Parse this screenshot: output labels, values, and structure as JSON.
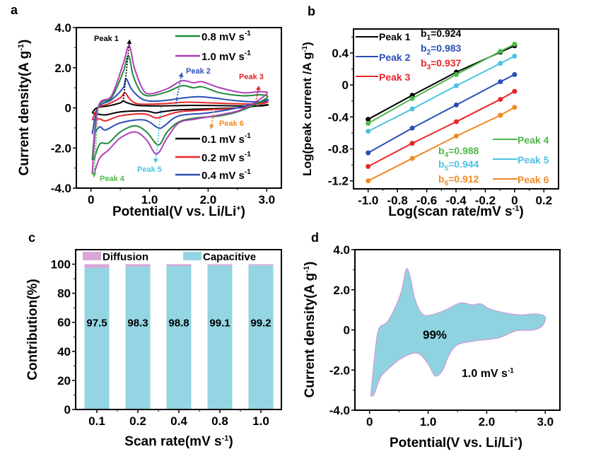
{
  "figure": {
    "panels": [
      "a",
      "b",
      "c",
      "d"
    ]
  },
  "chart_data": [
    {
      "panel": "a",
      "type": "line",
      "title": "",
      "xlabel": "Potential(V vs. Li/Li+)",
      "ylabel": "Current density(A g-1)",
      "xlim": [
        -0.25,
        3.25
      ],
      "ylim": [
        -4.0,
        4.0
      ],
      "xticks": [
        0,
        1.0,
        2.0,
        3.0
      ],
      "xtick_labels": [
        "0",
        "1.0",
        "2.0",
        "3.0"
      ],
      "yticks": [
        -4.0,
        -2.0,
        0,
        2.0,
        4.0
      ],
      "ytick_labels": [
        "-4.0",
        "-2.0",
        "0",
        "2.0",
        "4.0"
      ],
      "legend_top": [
        {
          "label": "0.8 mV s-1",
          "color": "#1e8a3c"
        },
        {
          "label": "1.0 mV s-1",
          "color": "#b13fb8"
        }
      ],
      "legend_bottom": [
        {
          "label": "0.1 mV s-1",
          "color": "#000000"
        },
        {
          "label": "0.2 mV s-1",
          "color": "#e8262a"
        },
        {
          "label": "0.4 mV s-1",
          "color": "#2b4fb5"
        }
      ],
      "series": [
        {
          "name": "0.1 mV s-1",
          "color": "#000000",
          "anodic": [
            [
              0.02,
              -0.25
            ],
            [
              0.1,
              0.0
            ],
            [
              0.3,
              0.1
            ],
            [
              0.5,
              0.25
            ],
            [
              0.55,
              0.35
            ],
            [
              0.62,
              0.25
            ],
            [
              0.8,
              0.12
            ],
            [
              1.2,
              0.1
            ],
            [
              1.6,
              0.12
            ],
            [
              2.0,
              0.12
            ],
            [
              2.5,
              0.1
            ],
            [
              2.9,
              0.1
            ],
            [
              3.0,
              0.15
            ]
          ],
          "cathodic": [
            [
              3.0,
              0.05
            ],
            [
              2.5,
              0.0
            ],
            [
              2.0,
              -0.05
            ],
            [
              1.5,
              -0.1
            ],
            [
              1.2,
              -0.2
            ],
            [
              1.1,
              -0.25
            ],
            [
              0.9,
              -0.15
            ],
            [
              0.5,
              -0.2
            ],
            [
              0.25,
              -0.35
            ],
            [
              0.1,
              -0.3
            ],
            [
              0.02,
              -0.25
            ]
          ]
        },
        {
          "name": "0.2 mV s-1",
          "color": "#e8262a",
          "anodic": [
            [
              0.02,
              -0.6
            ],
            [
              0.12,
              0.0
            ],
            [
              0.3,
              0.2
            ],
            [
              0.5,
              0.5
            ],
            [
              0.58,
              0.75
            ],
            [
              0.66,
              0.45
            ],
            [
              0.8,
              0.2
            ],
            [
              1.2,
              0.2
            ],
            [
              1.6,
              0.28
            ],
            [
              2.0,
              0.25
            ],
            [
              2.5,
              0.2
            ],
            [
              2.9,
              0.2
            ],
            [
              3.0,
              0.3
            ]
          ],
          "cathodic": [
            [
              3.0,
              0.1
            ],
            [
              2.5,
              0.0
            ],
            [
              2.0,
              -0.1
            ],
            [
              1.5,
              -0.2
            ],
            [
              1.2,
              -0.45
            ],
            [
              1.1,
              -0.5
            ],
            [
              0.9,
              -0.3
            ],
            [
              0.5,
              -0.4
            ],
            [
              0.25,
              -0.65
            ],
            [
              0.15,
              -0.55
            ],
            [
              0.02,
              -0.6
            ]
          ]
        },
        {
          "name": "0.4 mV s-1",
          "color": "#2b4fb5",
          "anodic": [
            [
              0.02,
              -1.3
            ],
            [
              0.12,
              0.0
            ],
            [
              0.35,
              0.4
            ],
            [
              0.55,
              1.0
            ],
            [
              0.6,
              1.45
            ],
            [
              0.7,
              0.9
            ],
            [
              0.9,
              0.4
            ],
            [
              1.2,
              0.35
            ],
            [
              1.6,
              0.5
            ],
            [
              1.9,
              0.55
            ],
            [
              2.5,
              0.35
            ],
            [
              2.9,
              0.3
            ],
            [
              3.0,
              0.4
            ]
          ],
          "cathodic": [
            [
              3.0,
              0.15
            ],
            [
              2.5,
              0.0
            ],
            [
              2.0,
              -0.25
            ],
            [
              1.5,
              -0.4
            ],
            [
              1.25,
              -0.9
            ],
            [
              1.15,
              -1.0
            ],
            [
              0.9,
              -0.6
            ],
            [
              0.5,
              -0.75
            ],
            [
              0.25,
              -1.1
            ],
            [
              0.15,
              -0.95
            ],
            [
              0.05,
              -1.3
            ]
          ]
        },
        {
          "name": "0.8 mV s-1",
          "color": "#1e8a3c",
          "anodic": [
            [
              0.02,
              -2.6
            ],
            [
              0.12,
              0.0
            ],
            [
              0.35,
              0.5
            ],
            [
              0.55,
              1.8
            ],
            [
              0.64,
              2.6
            ],
            [
              0.72,
              1.6
            ],
            [
              0.85,
              0.8
            ],
            [
              1.0,
              0.6
            ],
            [
              1.3,
              0.8
            ],
            [
              1.55,
              1.1
            ],
            [
              1.75,
              1.0
            ],
            [
              1.9,
              1.05
            ],
            [
              2.2,
              0.75
            ],
            [
              2.6,
              0.6
            ],
            [
              2.9,
              0.65
            ],
            [
              3.0,
              0.5
            ]
          ],
          "cathodic": [
            [
              3.0,
              0.1
            ],
            [
              2.6,
              -0.1
            ],
            [
              2.2,
              -0.4
            ],
            [
              1.8,
              -0.5
            ],
            [
              1.5,
              -0.7
            ],
            [
              1.3,
              -1.2
            ],
            [
              1.15,
              -1.85
            ],
            [
              0.95,
              -1.2
            ],
            [
              0.75,
              -0.9
            ],
            [
              0.5,
              -1.2
            ],
            [
              0.3,
              -1.75
            ],
            [
              0.15,
              -1.8
            ],
            [
              0.05,
              -2.6
            ]
          ]
        },
        {
          "name": "1.0 mV s-1",
          "color": "#b13fb8",
          "anodic": [
            [
              0.02,
              -3.3
            ],
            [
              0.12,
              0.0
            ],
            [
              0.35,
              0.6
            ],
            [
              0.55,
              2.2
            ],
            [
              0.65,
              3.1
            ],
            [
              0.74,
              2.0
            ],
            [
              0.88,
              0.95
            ],
            [
              1.0,
              0.7
            ],
            [
              1.3,
              0.95
            ],
            [
              1.55,
              1.35
            ],
            [
              1.75,
              1.25
            ],
            [
              1.9,
              1.3
            ],
            [
              2.2,
              1.0
            ],
            [
              2.6,
              0.75
            ],
            [
              2.85,
              0.8
            ],
            [
              3.0,
              0.7
            ]
          ],
          "cathodic": [
            [
              3.0,
              0.2
            ],
            [
              2.6,
              -0.05
            ],
            [
              2.2,
              -0.35
            ],
            [
              1.8,
              -0.55
            ],
            [
              1.5,
              -0.75
            ],
            [
              1.3,
              -1.5
            ],
            [
              1.12,
              -2.3
            ],
            [
              0.95,
              -1.6
            ],
            [
              0.75,
              -1.2
            ],
            [
              0.5,
              -1.5
            ],
            [
              0.3,
              -2.1
            ],
            [
              0.15,
              -2.5
            ],
            [
              0.05,
              -3.3
            ]
          ]
        }
      ],
      "annotations": [
        {
          "label": "Peak 1",
          "color": "#000000"
        },
        {
          "label": "Peak 2",
          "color": "#2b4fb5"
        },
        {
          "label": "Peak 3",
          "color": "#e8262a"
        },
        {
          "label": "Peak 4",
          "color": "#4cb848"
        },
        {
          "label": "Peak 5",
          "color": "#4cc2e0"
        },
        {
          "label": "Peak 6",
          "color": "#f08a24"
        }
      ]
    },
    {
      "panel": "b",
      "type": "scatter",
      "title": "",
      "xlabel": "Log(scan rate/mV s-1)",
      "ylabel": "Log(peak current /A g-1)",
      "xlim": [
        -1.1,
        0.3
      ],
      "ylim": [
        -1.3,
        0.7
      ],
      "xticks": [
        -1.0,
        -0.8,
        -0.6,
        -0.4,
        -0.2,
        0,
        0.2
      ],
      "xtick_labels": [
        "-1.0",
        "-0.8",
        "-0.6",
        "-0.4",
        "-0.2",
        "0",
        "0.2"
      ],
      "yticks": [
        -1.2,
        -0.8,
        -0.4,
        0,
        0.4
      ],
      "ytick_labels": [
        "-1.2",
        "-0.8",
        "-0.4",
        "0",
        "0.4"
      ],
      "x": [
        -1.0,
        -0.699,
        -0.398,
        -0.097,
        0.0
      ],
      "series": [
        {
          "name": "Peak 1",
          "b_label": "b1=0.924",
          "color": "#000000",
          "values": [
            -0.43,
            -0.13,
            0.16,
            0.41,
            0.49
          ]
        },
        {
          "name": "Peak 2",
          "b_label": "b2=0.983",
          "color": "#2b4fb5",
          "values": [
            -0.85,
            -0.54,
            -0.25,
            0.04,
            0.13
          ]
        },
        {
          "name": "Peak 3",
          "b_label": "b3=0.937",
          "color": "#e8262a",
          "values": [
            -1.02,
            -0.73,
            -0.46,
            -0.18,
            -0.08
          ]
        },
        {
          "name": "Peak 4",
          "b_label": "b4=0.988",
          "color": "#4cb848",
          "values": [
            -0.48,
            -0.17,
            0.13,
            0.42,
            0.51
          ]
        },
        {
          "name": "Peak 5",
          "b_label": "b5=0.944",
          "color": "#4cc2e0",
          "values": [
            -0.58,
            -0.3,
            -0.01,
            0.27,
            0.36
          ]
        },
        {
          "name": "Peak 6",
          "b_label": "b6=0.912",
          "color": "#f08a24",
          "values": [
            -1.2,
            -0.92,
            -0.64,
            -0.38,
            -0.28
          ]
        }
      ]
    },
    {
      "panel": "c",
      "type": "bar",
      "stacked": true,
      "title": "",
      "xlabel": "Scan rate(mV s-1)",
      "ylabel": "Contribution(%)",
      "ylim": [
        0,
        110
      ],
      "yticks": [
        0,
        20,
        40,
        60,
        80,
        100
      ],
      "ytick_labels": [
        "0",
        "20",
        "40",
        "60",
        "80",
        "100"
      ],
      "categories": [
        "0.1",
        "0.2",
        "0.4",
        "0.8",
        "1.0"
      ],
      "series": [
        {
          "name": "Capacitive",
          "color": "#93d5e2",
          "values": [
            97.5,
            98.3,
            98.8,
            99.1,
            99.2
          ]
        },
        {
          "name": "Diffusion",
          "color": "#d9a6d6",
          "values": [
            2.5,
            1.7,
            1.2,
            0.9,
            0.8
          ]
        }
      ],
      "data_labels": [
        "97.5",
        "98.3",
        "98.8",
        "99.1",
        "99.2"
      ],
      "legend": [
        "Diffusion",
        "Capacitive"
      ],
      "legend_position": "top"
    },
    {
      "panel": "d",
      "type": "area",
      "title": "",
      "xlabel": "Potential(V vs. Li/Li+)",
      "ylabel": "Current density(A g-1)",
      "xlim": [
        -0.25,
        3.25
      ],
      "ylim": [
        -4.0,
        4.0
      ],
      "xticks": [
        0,
        1.0,
        2.0,
        3.0
      ],
      "xtick_labels": [
        "0",
        "1.0",
        "2.0",
        "3.0"
      ],
      "yticks": [
        -4.0,
        -2.0,
        0,
        2.0,
        4.0
      ],
      "ytick_labels": [
        "-4.0",
        "-2.0",
        "0",
        "2.0",
        "4.0"
      ],
      "fill_color": "#8fd3e0",
      "outline_color": "#d98ad6",
      "annotation_percent": "99%",
      "annotation_rate": "1.0 mV s-1",
      "anodic": [
        [
          0.02,
          -3.3
        ],
        [
          0.08,
          -1.5
        ],
        [
          0.15,
          0.0
        ],
        [
          0.3,
          0.4
        ],
        [
          0.45,
          1.2
        ],
        [
          0.55,
          2.0
        ],
        [
          0.62,
          3.0
        ],
        [
          0.68,
          2.8
        ],
        [
          0.78,
          1.5
        ],
        [
          0.9,
          0.8
        ],
        [
          1.05,
          0.75
        ],
        [
          1.3,
          1.0
        ],
        [
          1.55,
          1.35
        ],
        [
          1.75,
          1.25
        ],
        [
          1.9,
          1.3
        ],
        [
          2.05,
          1.05
        ],
        [
          2.4,
          0.8
        ],
        [
          2.6,
          0.75
        ],
        [
          2.85,
          0.8
        ],
        [
          3.0,
          0.65
        ]
      ],
      "cathodic": [
        [
          3.0,
          0.6
        ],
        [
          2.95,
          0.2
        ],
        [
          2.8,
          0.0
        ],
        [
          2.5,
          -0.05
        ],
        [
          2.2,
          -0.4
        ],
        [
          1.8,
          -0.55
        ],
        [
          1.5,
          -0.75
        ],
        [
          1.35,
          -1.3
        ],
        [
          1.25,
          -2.0
        ],
        [
          1.12,
          -2.3
        ],
        [
          1.0,
          -1.7
        ],
        [
          0.85,
          -1.2
        ],
        [
          0.7,
          -1.2
        ],
        [
          0.5,
          -1.5
        ],
        [
          0.3,
          -2.0
        ],
        [
          0.18,
          -2.4
        ],
        [
          0.08,
          -3.2
        ],
        [
          0.02,
          -3.3
        ]
      ]
    }
  ],
  "labels": {
    "panel_a": "a",
    "panel_b": "b",
    "panel_c": "c",
    "panel_d": "d",
    "peak1": "Peak 1",
    "peak2": "Peak 2",
    "peak3": "Peak 3",
    "peak4": "Peak 4",
    "peak5": "Peak 5",
    "peak6": "Peak 6",
    "potential_axis": "Potential(V vs. Li/Li",
    "potential_sup": "+",
    "potential_close": ")",
    "current_axis": "Current density(A g",
    "current_sup": "-1",
    "current_close": ")",
    "logscan_axis": "Log(scan rate/mV s",
    "logscan_sup": "-1",
    "logscan_close": ")",
    "logpeak_axis": "Log(peak current /A g",
    "logpeak_sup": "-1",
    "logpeak_close": ")",
    "contribution_axis": "Contribution(%)",
    "scanrate_axis": "Scan rate(mV s",
    "scanrate_sup": "-1",
    "scanrate_close": ")",
    "mvs": " mV s",
    "mvs_sup": "-1"
  }
}
